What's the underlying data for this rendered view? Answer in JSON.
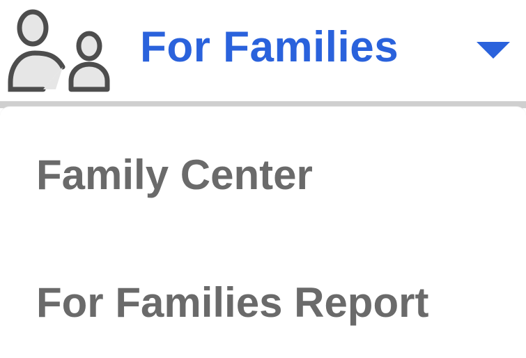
{
  "header": {
    "icon": "family-icon",
    "title": "For Families",
    "dropdown_icon": "caret-down-icon",
    "accent_color": "#2a62dc"
  },
  "menu": {
    "items": [
      {
        "label": "Family Center"
      },
      {
        "label": "For Families Report"
      }
    ],
    "text_color": "#6a6a6a"
  }
}
